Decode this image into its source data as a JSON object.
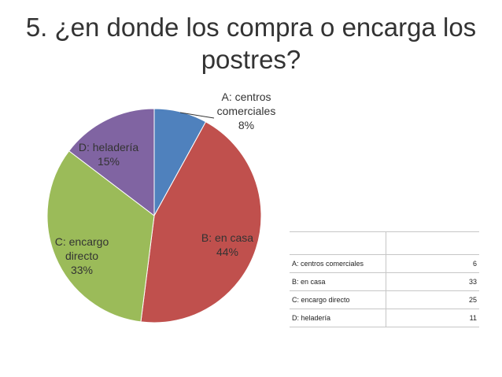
{
  "title": "5. ¿en donde los compra o encarga los postres?",
  "chart_data": {
    "type": "pie",
    "categories": [
      "A: centros comerciales",
      "B: en casa",
      "C: encargo directo",
      "D: heladería"
    ],
    "values": [
      6,
      33,
      25,
      11
    ],
    "percent_labels": [
      "8%",
      "44%",
      "33%",
      "15%"
    ],
    "colors": [
      "#4f81bd",
      "#c0504d",
      "#9bbb59",
      "#8064a2"
    ],
    "legend": "none",
    "start_angle": "top, clockwise"
  },
  "slice_labels": [
    {
      "lines": [
        "A: centros",
        "comerciales",
        "8%"
      ]
    },
    {
      "lines": [
        "B: en casa",
        "44%"
      ]
    },
    {
      "lines": [
        "C: encargo",
        "directo",
        "33%"
      ]
    },
    {
      "lines": [
        "D: heladería",
        "15%"
      ]
    }
  ],
  "table": {
    "rows": [
      {
        "label": "A: centros comerciales",
        "value": "6"
      },
      {
        "label": "B: en casa",
        "value": "33"
      },
      {
        "label": "C: encargo directo",
        "value": "25"
      },
      {
        "label": "D: heladería",
        "value": "11"
      }
    ]
  }
}
